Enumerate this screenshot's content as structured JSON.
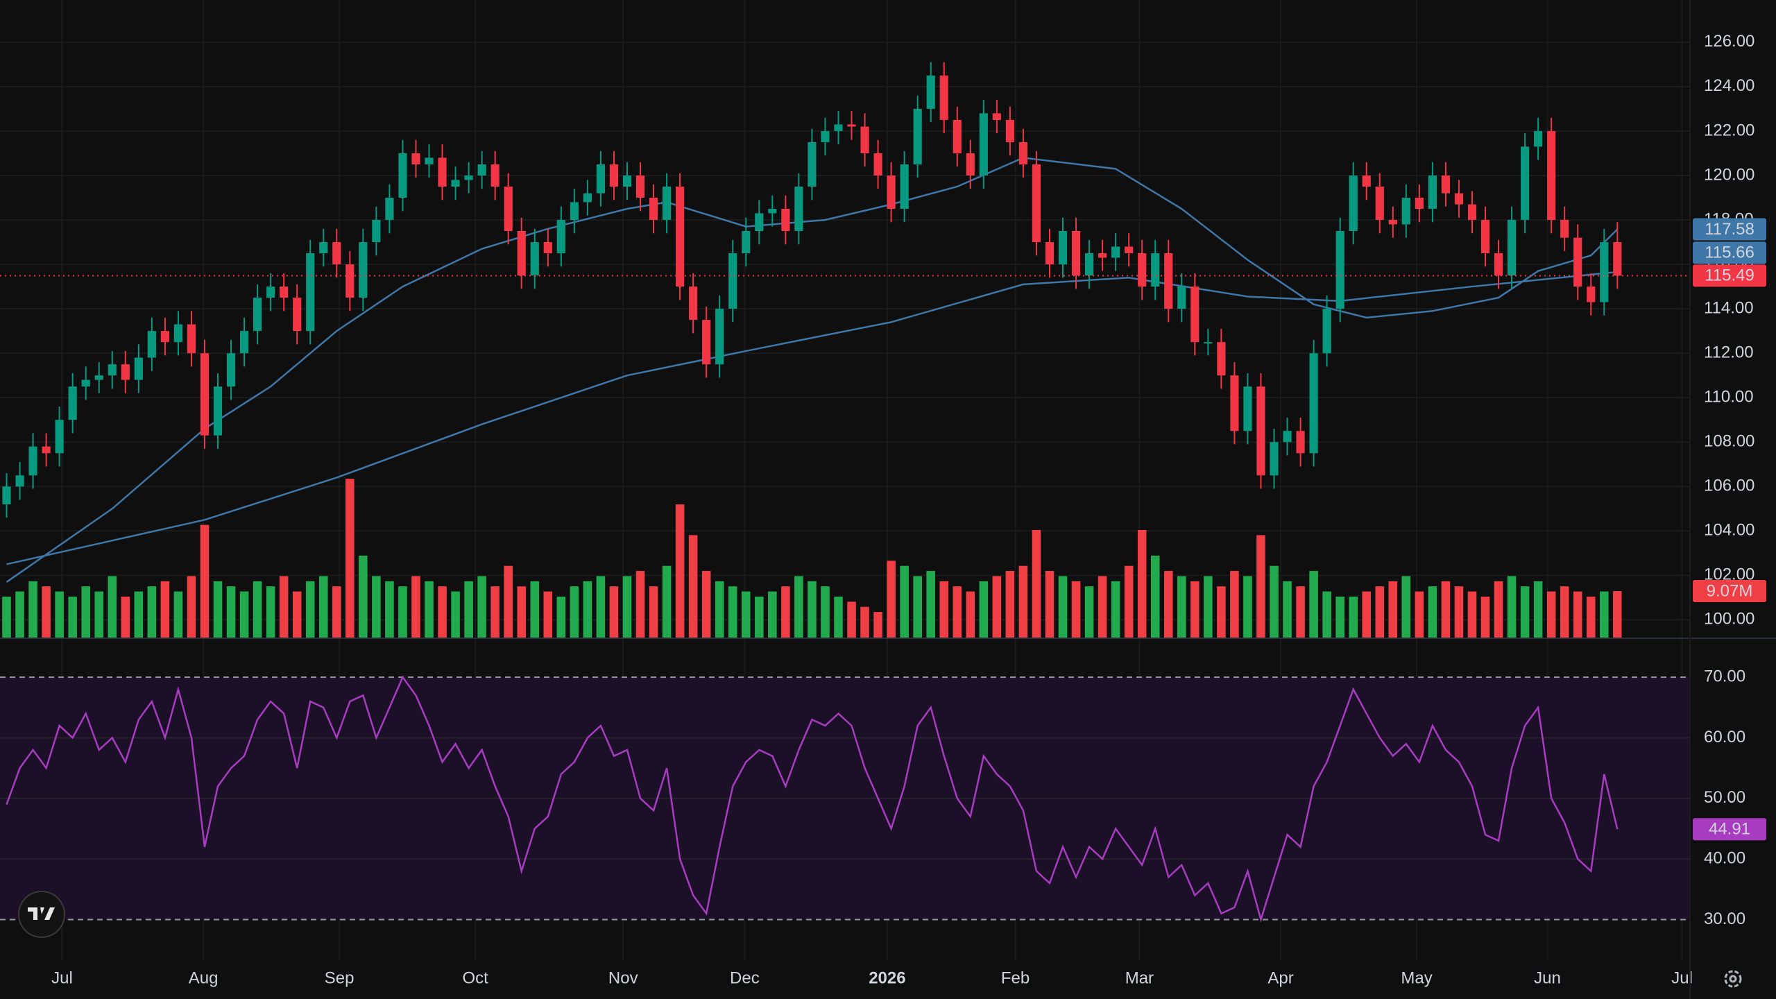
{
  "chart_data": [
    {
      "type": "candlestick",
      "xlim": [
        -0.5,
        127.5
      ],
      "xticks": [
        {
          "value": 4.2,
          "label": "Jul"
        },
        {
          "value": 14.9,
          "label": "Aug"
        },
        {
          "value": 25.2,
          "label": "Sep"
        },
        {
          "value": 35.5,
          "label": "Oct"
        },
        {
          "value": 46.7,
          "label": "Nov"
        },
        {
          "value": 55.9,
          "label": "Dec"
        },
        {
          "value": 66.7,
          "label": "2026",
          "bold": true
        },
        {
          "value": 76.4,
          "label": "Feb"
        },
        {
          "value": 85.8,
          "label": "Mar"
        },
        {
          "value": 96.5,
          "label": "Apr"
        },
        {
          "value": 106.8,
          "label": "May"
        },
        {
          "value": 116.7,
          "label": "Jun"
        },
        {
          "value": 126.9,
          "label": "Jul"
        }
      ],
      "ylim": [
        99.2,
        127.9
      ],
      "yticks": [
        {
          "value": 100,
          "label": "100.00"
        },
        {
          "value": 102,
          "label": "102.00"
        },
        {
          "value": 104,
          "label": "104.00"
        },
        {
          "value": 106,
          "label": "106.00"
        },
        {
          "value": 108,
          "label": "108.00"
        },
        {
          "value": 110,
          "label": "110.00"
        },
        {
          "value": 112,
          "label": "112.00"
        },
        {
          "value": 114,
          "label": "114.00"
        },
        {
          "value": 116,
          "label": "116.00"
        },
        {
          "value": 118,
          "label": "118.00"
        },
        {
          "value": 120,
          "label": "120.00"
        },
        {
          "value": 122,
          "label": "122.00"
        },
        {
          "value": 124,
          "label": "124.00"
        },
        {
          "value": 126,
          "label": "126.00"
        }
      ],
      "grid": true,
      "last_price_line": true,
      "up_color": "#089981",
      "down_color": "#f23645",
      "open": [
        105.2,
        106,
        106.5,
        107.8,
        107.5,
        109,
        110.5,
        110.8,
        111,
        111.5,
        110.8,
        111.8,
        113,
        112.5,
        113.3,
        112,
        108.3,
        110.5,
        112,
        113,
        114.5,
        115,
        114.5,
        113,
        116.5,
        117,
        116,
        114.5,
        117,
        118,
        119,
        121,
        120.5,
        120.8,
        119.5,
        119.8,
        120,
        120.5,
        119.5,
        117.5,
        115.5,
        117,
        116.5,
        118,
        118.8,
        119.2,
        120.5,
        119.5,
        120,
        119,
        118,
        119.5,
        115,
        113.5,
        111.5,
        114,
        116.5,
        117.5,
        118.3,
        118.5,
        117.5,
        119.5,
        121.5,
        122,
        122.3,
        122.2,
        121,
        120,
        118.5,
        120.5,
        123,
        124.5,
        122.5,
        121,
        120,
        122.8,
        122.5,
        121.5,
        120.5,
        117,
        116,
        117.5,
        115.5,
        116.5,
        116.3,
        116.8,
        116.5,
        115,
        116.5,
        114,
        115,
        112.5,
        112.5,
        111,
        108.5,
        110.5,
        106.5,
        108,
        108.5,
        107.5,
        112,
        114,
        117.5,
        120,
        119.5,
        118,
        117.8,
        119,
        118.5,
        120,
        119.2,
        118.7,
        118,
        116.5,
        115.5,
        118,
        121.3,
        122,
        118,
        117.2,
        115,
        114.3,
        117
      ],
      "high": [
        106.6,
        107.1,
        108.4,
        108.4,
        109.6,
        111.1,
        111.4,
        111.6,
        112.1,
        112.1,
        112.4,
        113.6,
        113.6,
        113.9,
        113.9,
        112.6,
        111.1,
        112.6,
        113.6,
        115.1,
        115.6,
        115.6,
        115.1,
        117.1,
        117.6,
        117.6,
        116.6,
        117.6,
        118.6,
        119.6,
        121.6,
        121.6,
        121.4,
        121.4,
        120.4,
        120.6,
        121.1,
        121.1,
        120.1,
        118.1,
        117.6,
        117.6,
        118.6,
        119.4,
        119.8,
        121.1,
        121.1,
        120.6,
        120.6,
        119.6,
        120.1,
        120.1,
        115.6,
        114.1,
        114.6,
        117.1,
        118.1,
        118.9,
        119.1,
        119.1,
        120.1,
        122.1,
        122.6,
        122.9,
        122.9,
        122.8,
        121.6,
        120.6,
        121.1,
        123.6,
        125.1,
        125.1,
        123.1,
        121.6,
        123.4,
        123.4,
        123.1,
        122.1,
        121.1,
        117.6,
        118.1,
        118.1,
        117.1,
        117.1,
        117.4,
        117.4,
        117.1,
        117.1,
        117.1,
        115.6,
        115.6,
        113.1,
        113.1,
        111.6,
        111.1,
        111.1,
        108.6,
        109.1,
        109.1,
        112.6,
        114.6,
        118.1,
        120.6,
        120.6,
        120.1,
        118.6,
        119.6,
        119.6,
        120.6,
        120.6,
        119.8,
        119.3,
        118.6,
        117.1,
        118.6,
        121.9,
        122.6,
        122.6,
        118.6,
        117.8,
        115.6,
        117.6,
        117.9
      ],
      "low": [
        104.6,
        105.4,
        105.9,
        106.9,
        106.9,
        108.4,
        109.9,
        110.2,
        110.4,
        110.2,
        110.2,
        111.2,
        111.9,
        111.9,
        111.4,
        107.7,
        107.7,
        109.9,
        111.4,
        112.4,
        113.9,
        113.9,
        112.4,
        112.4,
        115.9,
        115.4,
        113.9,
        113.9,
        116.4,
        117.4,
        118.4,
        119.9,
        119.9,
        118.9,
        118.9,
        119.2,
        119.4,
        118.9,
        116.9,
        114.9,
        114.9,
        115.9,
        115.9,
        117.4,
        118.2,
        118.6,
        118.9,
        118.9,
        118.4,
        117.4,
        117.4,
        114.4,
        112.9,
        110.9,
        110.9,
        113.4,
        115.9,
        116.9,
        117.7,
        116.9,
        116.9,
        118.9,
        120.9,
        121.4,
        121.6,
        120.4,
        119.4,
        117.9,
        117.9,
        119.9,
        122.4,
        121.9,
        120.4,
        119.4,
        119.4,
        121.9,
        120.9,
        119.9,
        116.4,
        115.4,
        115.4,
        114.9,
        114.9,
        115.7,
        115.7,
        115.9,
        114.4,
        114.4,
        113.4,
        113.4,
        111.9,
        111.9,
        110.4,
        107.9,
        107.9,
        105.9,
        105.9,
        107.4,
        106.9,
        106.9,
        111.4,
        113.4,
        116.9,
        118.9,
        117.4,
        117.2,
        117.2,
        117.9,
        117.9,
        118.6,
        118.1,
        117.4,
        115.9,
        114.9,
        114.9,
        117.4,
        120.7,
        117.4,
        116.6,
        114.4,
        113.7,
        113.7,
        114.9
      ],
      "close": [
        106,
        106.5,
        107.8,
        107.5,
        109,
        110.5,
        110.8,
        111,
        111.5,
        110.8,
        111.8,
        113,
        112.5,
        113.3,
        112,
        108.3,
        110.5,
        112,
        113,
        114.5,
        115,
        114.5,
        113,
        116.5,
        117,
        116,
        114.5,
        117,
        118,
        119,
        121,
        120.5,
        120.8,
        119.5,
        119.8,
        120,
        120.5,
        119.5,
        117.5,
        115.5,
        117,
        116.5,
        118,
        118.8,
        119.2,
        120.5,
        119.5,
        120,
        119,
        118,
        119.5,
        115,
        113.5,
        111.5,
        114,
        116.5,
        117.5,
        118.3,
        118.5,
        117.5,
        119.5,
        121.5,
        122,
        122.3,
        122.2,
        121,
        120,
        118.5,
        120.5,
        123,
        124.5,
        122.5,
        121,
        120,
        122.8,
        122.5,
        121.5,
        120.5,
        117,
        116,
        117.5,
        115.5,
        116.5,
        116.3,
        116.8,
        116.5,
        115,
        116.5,
        114,
        115,
        112.5,
        112.5,
        111,
        108.5,
        110.5,
        106.5,
        108,
        108.5,
        107.5,
        112,
        114,
        117.5,
        120,
        119.5,
        118,
        117.8,
        119,
        118.5,
        120,
        119.2,
        118.7,
        118,
        116.5,
        115.5,
        118,
        121.3,
        122,
        118,
        117.2,
        115,
        114.3,
        117,
        115.49
      ],
      "overlays": [
        {
          "color": "#3f78a8",
          "x": [
            0,
            8,
            15,
            20,
            25,
            30,
            36,
            41,
            47,
            50,
            56,
            62,
            67,
            72,
            77,
            84,
            89,
            94,
            99,
            103,
            108,
            113,
            116,
            120,
            122
          ],
          "values": [
            101.7,
            105,
            108.6,
            110.5,
            113,
            115,
            116.7,
            117.6,
            118.5,
            118.8,
            117.7,
            118,
            118.7,
            119.5,
            120.8,
            120.3,
            118.5,
            116.2,
            114.2,
            113.6,
            113.9,
            114.5,
            115.7,
            116.4,
            117.58
          ]
        },
        {
          "color": "#3f78a8",
          "x": [
            0,
            15,
            25,
            36,
            47,
            56,
            67,
            77,
            85,
            94,
            101,
            111,
            122
          ],
          "values": [
            102.5,
            104.5,
            106.4,
            108.8,
            111,
            112.1,
            113.4,
            115.1,
            115.4,
            114.55,
            114.35,
            115,
            115.66
          ]
        }
      ],
      "volume": {
        "ylim": [
          0,
          124.5
        ],
        "up_color": "#22ab4e",
        "down_color": "#ef3e44",
        "last_label": "9.07M",
        "values": [
          8,
          9,
          11,
          10,
          9,
          8,
          10,
          9,
          12,
          8,
          9,
          10,
          11,
          9,
          12,
          22,
          11,
          10,
          9,
          11,
          10,
          12,
          9,
          11,
          12,
          10,
          31,
          16,
          12,
          11,
          10,
          12,
          11,
          10,
          9,
          11,
          12,
          10,
          14,
          10,
          11,
          9,
          8,
          10,
          11,
          12,
          10,
          12,
          13,
          10,
          14,
          26,
          20,
          13,
          11,
          10,
          9,
          8,
          9,
          10,
          12,
          11,
          10,
          8,
          7,
          6,
          5,
          15,
          14,
          12,
          13,
          11,
          10,
          9,
          11,
          12,
          13,
          14,
          21,
          13,
          12,
          11,
          10,
          12,
          11,
          14,
          21,
          16,
          13,
          12,
          11,
          12,
          10,
          13,
          12,
          20,
          14,
          11,
          10,
          13,
          9,
          8,
          8,
          9,
          10,
          11,
          12,
          9,
          10,
          11,
          10,
          9,
          8,
          11,
          12,
          10,
          11,
          9,
          10,
          9,
          8,
          9,
          9.07
        ]
      }
    },
    {
      "type": "line",
      "color": "#a83cc0",
      "band_color": "#1c0f28",
      "ylim": [
        23.3,
        76.2
      ],
      "yticks": [
        {
          "value": 30,
          "label": "30.00"
        },
        {
          "value": 40,
          "label": "40.00"
        },
        {
          "value": 50,
          "label": "50.00"
        },
        {
          "value": 60,
          "label": "60.00"
        },
        {
          "value": 70,
          "label": "70.00"
        }
      ],
      "values": [
        49,
        55,
        58,
        55,
        62,
        60,
        64,
        58,
        60,
        56,
        63,
        66,
        60,
        68,
        60,
        42,
        52,
        55,
        57,
        63,
        66,
        64,
        55,
        66,
        65,
        60,
        66,
        67,
        60,
        65,
        70,
        67,
        62,
        56,
        59,
        55,
        58,
        52,
        47,
        38,
        45,
        47,
        54,
        56,
        60,
        62,
        57,
        58,
        50,
        48,
        55,
        40,
        34,
        31,
        42,
        52,
        56,
        58,
        57,
        52,
        58,
        63,
        62,
        64,
        62,
        55,
        50,
        45,
        52,
        62,
        65,
        57,
        50,
        47,
        57,
        54,
        52,
        48,
        38,
        36,
        42,
        37,
        42,
        40,
        45,
        42,
        39,
        45,
        37,
        39,
        34,
        36,
        31,
        32,
        38,
        30,
        37,
        44,
        42,
        52,
        56,
        62,
        68,
        64,
        60,
        57,
        59,
        56,
        62,
        58,
        56,
        52,
        44,
        43,
        55,
        62,
        65,
        50,
        46,
        40,
        38,
        54,
        44.91
      ]
    }
  ]
}
